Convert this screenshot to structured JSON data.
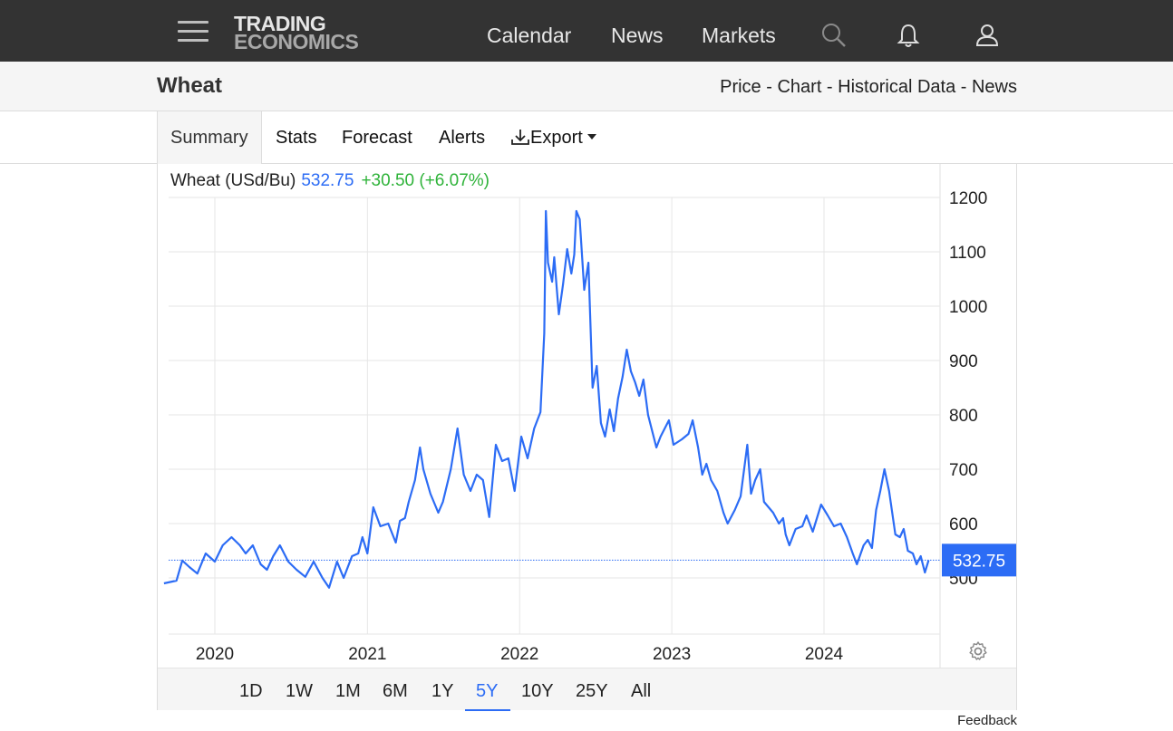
{
  "header": {
    "logo_line1": "TRADING",
    "logo_line2": "ECONOMICS",
    "nav": [
      "Calendar",
      "News",
      "Markets"
    ],
    "icons": [
      "menu-icon",
      "search-icon",
      "bell-icon",
      "user-icon"
    ]
  },
  "subbar": {
    "title": "Wheat",
    "links": [
      "Price",
      "Chart",
      "Historical Data",
      "News"
    ],
    "separator": " - "
  },
  "tabs": {
    "summary": "Summary",
    "stats": "Stats",
    "forecast": "Forecast",
    "alerts": "Alerts",
    "export": "Export"
  },
  "quote": {
    "name": "Wheat (USd/Bu)",
    "price": "532.75",
    "change": "+30.50 (+6.07%)"
  },
  "colors": {
    "line": "#2c6cf5",
    "change_up": "#2fb33a",
    "topbar": "#333333"
  },
  "ranges": {
    "items": [
      "1D",
      "1W",
      "1M",
      "6M",
      "1Y",
      "5Y",
      "10Y",
      "25Y",
      "All"
    ],
    "selected": "5Y"
  },
  "feedback": "Feedback",
  "chart_data": {
    "type": "line",
    "series": [
      {
        "name": "Wheat (USd/Bu)"
      }
    ],
    "x_start": "2019-09",
    "x_end": "2024-09",
    "x_ticks": [
      "2020",
      "2021",
      "2022",
      "2023",
      "2024"
    ],
    "y_ticks": [
      500,
      600,
      700,
      800,
      900,
      1000,
      1100,
      1200
    ],
    "ylim": [
      400,
      1220
    ],
    "last_value_label": "532.75",
    "grid": true,
    "points": [
      [
        "2019-09-01",
        490
      ],
      [
        "2019-10-01",
        495
      ],
      [
        "2019-10-15",
        532
      ],
      [
        "2019-11-01",
        520
      ],
      [
        "2019-11-20",
        508
      ],
      [
        "2019-12-10",
        545
      ],
      [
        "2020-01-01",
        530
      ],
      [
        "2020-01-20",
        560
      ],
      [
        "2020-02-10",
        575
      ],
      [
        "2020-03-01",
        560
      ],
      [
        "2020-03-15",
        545
      ],
      [
        "2020-04-01",
        560
      ],
      [
        "2020-04-20",
        525
      ],
      [
        "2020-05-05",
        515
      ],
      [
        "2020-05-20",
        540
      ],
      [
        "2020-06-05",
        560
      ],
      [
        "2020-06-25",
        530
      ],
      [
        "2020-07-15",
        515
      ],
      [
        "2020-08-05",
        502
      ],
      [
        "2020-08-25",
        530
      ],
      [
        "2020-09-15",
        500
      ],
      [
        "2020-10-01",
        482
      ],
      [
        "2020-10-20",
        530
      ],
      [
        "2020-11-05",
        500
      ],
      [
        "2020-11-25",
        540
      ],
      [
        "2020-12-10",
        545
      ],
      [
        "2020-12-20",
        575
      ],
      [
        "2021-01-01",
        545
      ],
      [
        "2021-01-15",
        630
      ],
      [
        "2021-02-01",
        595
      ],
      [
        "2021-02-20",
        600
      ],
      [
        "2021-03-10",
        565
      ],
      [
        "2021-03-20",
        605
      ],
      [
        "2021-04-01",
        610
      ],
      [
        "2021-04-10",
        640
      ],
      [
        "2021-04-25",
        680
      ],
      [
        "2021-05-07",
        740
      ],
      [
        "2021-05-15",
        700
      ],
      [
        "2021-06-01",
        655
      ],
      [
        "2021-06-20",
        620
      ],
      [
        "2021-07-01",
        640
      ],
      [
        "2021-07-20",
        700
      ],
      [
        "2021-08-05",
        775
      ],
      [
        "2021-08-20",
        690
      ],
      [
        "2021-09-05",
        660
      ],
      [
        "2021-09-20",
        690
      ],
      [
        "2021-10-05",
        680
      ],
      [
        "2021-10-20",
        612
      ],
      [
        "2021-11-05",
        745
      ],
      [
        "2021-11-20",
        715
      ],
      [
        "2021-12-05",
        720
      ],
      [
        "2021-12-20",
        660
      ],
      [
        "2022-01-05",
        760
      ],
      [
        "2022-01-20",
        720
      ],
      [
        "2022-02-05",
        775
      ],
      [
        "2022-02-20",
        805
      ],
      [
        "2022-03-01",
        950
      ],
      [
        "2022-03-05",
        1175
      ],
      [
        "2022-03-10",
        1080
      ],
      [
        "2022-03-20",
        1045
      ],
      [
        "2022-03-25",
        1090
      ],
      [
        "2022-04-05",
        985
      ],
      [
        "2022-04-15",
        1040
      ],
      [
        "2022-04-25",
        1105
      ],
      [
        "2022-05-05",
        1060
      ],
      [
        "2022-05-12",
        1095
      ],
      [
        "2022-05-17",
        1175
      ],
      [
        "2022-05-25",
        1160
      ],
      [
        "2022-06-05",
        1030
      ],
      [
        "2022-06-15",
        1080
      ],
      [
        "2022-06-25",
        850
      ],
      [
        "2022-07-05",
        890
      ],
      [
        "2022-07-15",
        785
      ],
      [
        "2022-07-25",
        760
      ],
      [
        "2022-08-05",
        810
      ],
      [
        "2022-08-15",
        770
      ],
      [
        "2022-08-25",
        830
      ],
      [
        "2022-09-05",
        870
      ],
      [
        "2022-09-15",
        920
      ],
      [
        "2022-09-25",
        880
      ],
      [
        "2022-10-05",
        860
      ],
      [
        "2022-10-15",
        835
      ],
      [
        "2022-10-25",
        865
      ],
      [
        "2022-11-05",
        800
      ],
      [
        "2022-11-25",
        740
      ],
      [
        "2022-12-05",
        760
      ],
      [
        "2022-12-25",
        790
      ],
      [
        "2023-01-05",
        745
      ],
      [
        "2023-01-25",
        755
      ],
      [
        "2023-02-10",
        765
      ],
      [
        "2023-02-20",
        790
      ],
      [
        "2023-03-05",
        740
      ],
      [
        "2023-03-15",
        690
      ],
      [
        "2023-03-25",
        710
      ],
      [
        "2023-04-05",
        680
      ],
      [
        "2023-04-20",
        660
      ],
      [
        "2023-05-05",
        620
      ],
      [
        "2023-05-15",
        600
      ],
      [
        "2023-06-01",
        625
      ],
      [
        "2023-06-15",
        650
      ],
      [
        "2023-07-01",
        745
      ],
      [
        "2023-07-10",
        655
      ],
      [
        "2023-07-20",
        680
      ],
      [
        "2023-08-01",
        700
      ],
      [
        "2023-08-10",
        640
      ],
      [
        "2023-09-01",
        620
      ],
      [
        "2023-09-15",
        600
      ],
      [
        "2023-09-25",
        610
      ],
      [
        "2023-10-01",
        580
      ],
      [
        "2023-10-10",
        560
      ],
      [
        "2023-10-25",
        590
      ],
      [
        "2023-11-10",
        595
      ],
      [
        "2023-11-20",
        615
      ],
      [
        "2023-12-05",
        585
      ],
      [
        "2023-12-25",
        635
      ],
      [
        "2024-01-10",
        615
      ],
      [
        "2024-01-25",
        595
      ],
      [
        "2024-02-10",
        600
      ],
      [
        "2024-02-25",
        575
      ],
      [
        "2024-03-10",
        545
      ],
      [
        "2024-03-20",
        525
      ],
      [
        "2024-04-05",
        560
      ],
      [
        "2024-04-15",
        570
      ],
      [
        "2024-04-25",
        555
      ],
      [
        "2024-05-05",
        625
      ],
      [
        "2024-05-15",
        660
      ],
      [
        "2024-05-25",
        700
      ],
      [
        "2024-06-05",
        660
      ],
      [
        "2024-06-20",
        580
      ],
      [
        "2024-07-01",
        575
      ],
      [
        "2024-07-10",
        590
      ],
      [
        "2024-07-20",
        550
      ],
      [
        "2024-08-01",
        545
      ],
      [
        "2024-08-10",
        525
      ],
      [
        "2024-08-20",
        540
      ],
      [
        "2024-08-30",
        510
      ],
      [
        "2024-09-08",
        532.75
      ]
    ]
  }
}
